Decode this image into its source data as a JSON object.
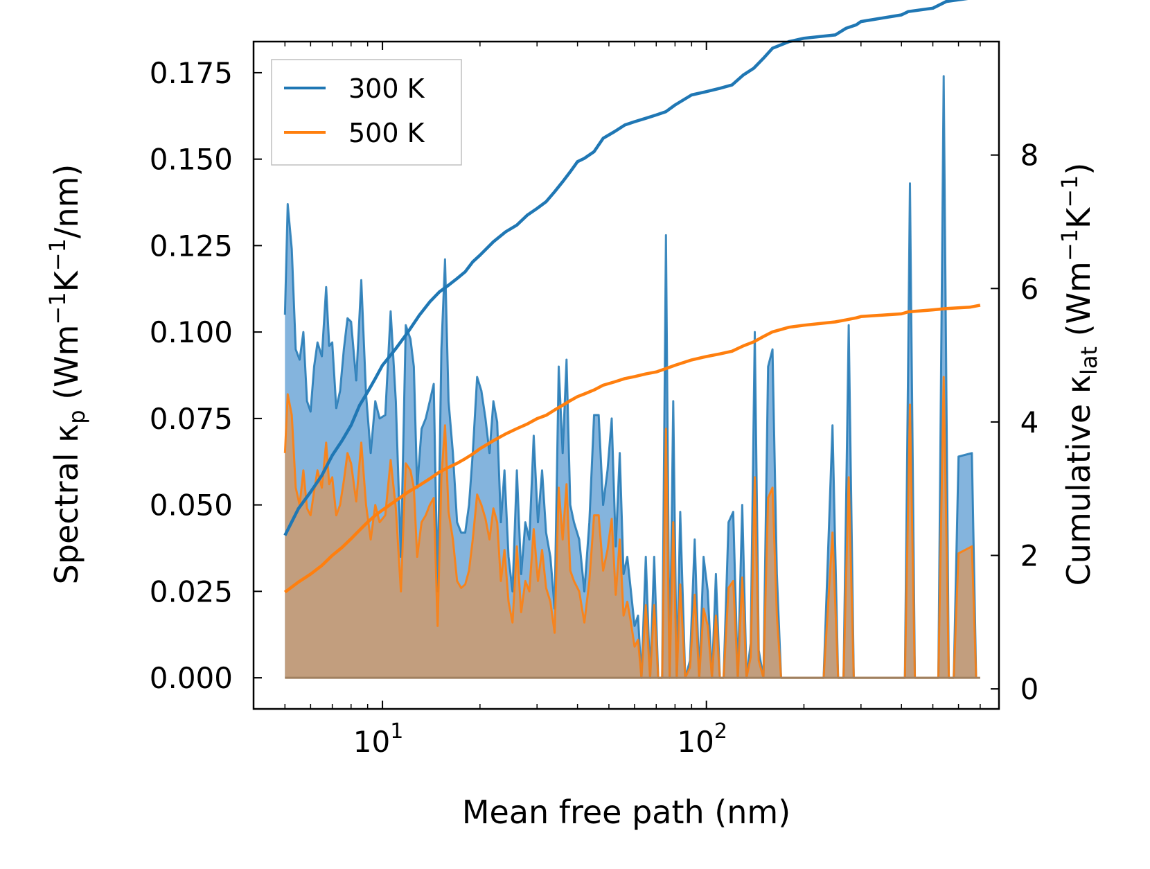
{
  "chart_data": {
    "type": "line",
    "title": "",
    "xlabel": "Mean free path (nm)",
    "ylabel_left": {
      "main": "Spectral κ",
      "sub": "p",
      "units_open": " (Wm",
      "sup1": "−1",
      "k": "K",
      "sup2": "−1",
      "tail": "/nm)"
    },
    "ylabel_right": {
      "main": "Cumulative κ",
      "sub": "lat",
      "units_open": " (Wm",
      "sup1": "−1",
      "k": "K",
      "sup2": "−1",
      "tail": ")"
    },
    "xscale": "log",
    "xlim": [
      4.0,
      800
    ],
    "ylim_left": [
      -0.009,
      0.184
    ],
    "ylim_right": [
      -0.3,
      9.7
    ],
    "xticks": [
      {
        "value": 10,
        "base": "10",
        "exp": "1"
      },
      {
        "value": 100,
        "base": "10",
        "exp": "2"
      }
    ],
    "yticks_left": [
      "0.000",
      "0.025",
      "0.050",
      "0.075",
      "0.100",
      "0.125",
      "0.150",
      "0.175"
    ],
    "yticks_left_values": [
      0,
      0.025,
      0.05,
      0.075,
      0.1,
      0.125,
      0.15,
      0.175
    ],
    "yticks_right": [
      "0",
      "2",
      "4",
      "6",
      "8"
    ],
    "yticks_right_values": [
      0,
      2,
      4,
      6,
      8
    ],
    "legend": {
      "position": "top-left",
      "entries": [
        {
          "label": "300 K",
          "color": "#1f77b4"
        },
        {
          "label": "500 K",
          "color": "#ff7f0e"
        }
      ]
    },
    "colors": {
      "s300": "#1f77b4",
      "s500": "#ff7f0e",
      "fill300": "#5b9bd1",
      "fill500": "#c59d78"
    },
    "spectral": {
      "axis": "left",
      "mfp": [
        5.0,
        5.1,
        5.25,
        5.4,
        5.55,
        5.7,
        5.85,
        6.0,
        6.15,
        6.3,
        6.5,
        6.7,
        6.85,
        7.0,
        7.2,
        7.4,
        7.6,
        7.8,
        8.0,
        8.3,
        8.6,
        8.9,
        9.2,
        9.5,
        9.8,
        10.2,
        10.6,
        11.0,
        11.4,
        11.8,
        12.2,
        12.5,
        12.8,
        13.2,
        13.6,
        14.0,
        14.4,
        14.8,
        15.2,
        15.6,
        16.0,
        16.5,
        17.0,
        17.5,
        18.0,
        18.5,
        19.0,
        19.6,
        20.2,
        20.8,
        21.4,
        22.0,
        22.6,
        23.2,
        23.8,
        24.5,
        25.2,
        26.0,
        26.8,
        27.6,
        28.4,
        29.3,
        30.2,
        31.1,
        32.0,
        33.0,
        34.0,
        35.0,
        36.0,
        37.0,
        38.0,
        39.0,
        40.5,
        42.0,
        43.5,
        45.0,
        46.5,
        48.0,
        49.5,
        51.0,
        52.5,
        54.0,
        55.5,
        57.0,
        58.5,
        60.0,
        61.5,
        63.0,
        65.0,
        67.0,
        69.0,
        71.0,
        73.0,
        75.0,
        77.0,
        79.0,
        81.0,
        83.0,
        86.0,
        89.0,
        92.0,
        95.0,
        98.0,
        101.0,
        104.0,
        107.0,
        110.0,
        113.0,
        117.0,
        121.0,
        125.0,
        129.0,
        133.0,
        137.0,
        141.0,
        145.0,
        150.0,
        155.0,
        160.0,
        165.0,
        170.0,
        175.0,
        180.0,
        186.0,
        192.0,
        230.0,
        245.0,
        255.0,
        265.0,
        275.0,
        285.0,
        295.0,
        390.0,
        410.0,
        425.0,
        440.0,
        520.0,
        540.0,
        560.0,
        580.0,
        600.0,
        660.0,
        680.0,
        700.0
      ],
      "300K": [
        0.105,
        0.137,
        0.124,
        0.095,
        0.092,
        0.1,
        0.08,
        0.077,
        0.09,
        0.097,
        0.093,
        0.113,
        0.096,
        0.097,
        0.078,
        0.083,
        0.095,
        0.104,
        0.103,
        0.086,
        0.115,
        0.082,
        0.065,
        0.08,
        0.075,
        0.076,
        0.106,
        0.08,
        0.035,
        0.102,
        0.098,
        0.09,
        0.055,
        0.072,
        0.075,
        0.08,
        0.085,
        0.025,
        0.095,
        0.121,
        0.08,
        0.065,
        0.045,
        0.042,
        0.042,
        0.05,
        0.065,
        0.087,
        0.083,
        0.075,
        0.065,
        0.08,
        0.074,
        0.045,
        0.06,
        0.035,
        0.025,
        0.06,
        0.03,
        0.045,
        0.04,
        0.07,
        0.045,
        0.06,
        0.042,
        0.035,
        0.02,
        0.09,
        0.065,
        0.092,
        0.05,
        0.045,
        0.04,
        0.025,
        0.045,
        0.076,
        0.076,
        0.05,
        0.06,
        0.075,
        0.038,
        0.065,
        0.03,
        0.035,
        0.025,
        0.015,
        0.018,
        0.0,
        0.035,
        0.0,
        0.035,
        0.0,
        0.0,
        0.128,
        0.0,
        0.08,
        0.0,
        0.048,
        0.0,
        0.005,
        0.04,
        0.0,
        0.035,
        0.025,
        0.0,
        0.03,
        0.0,
        0.0,
        0.045,
        0.048,
        0.0,
        0.05,
        0.0,
        0.01,
        0.1,
        0.008,
        0.0,
        0.09,
        0.095,
        0.03,
        0.0,
        0.0,
        0.0,
        0.0,
        0.0,
        0.0,
        0.073,
        0.0,
        0.0,
        0.102,
        0.0,
        0.0,
        0.0,
        0.0,
        0.143,
        0.0,
        0.0,
        0.174,
        0.0,
        0.0,
        0.064,
        0.065,
        0.0
      ],
      "500K": [
        0.065,
        0.082,
        0.076,
        0.055,
        0.05,
        0.06,
        0.049,
        0.047,
        0.054,
        0.06,
        0.055,
        0.068,
        0.056,
        0.058,
        0.047,
        0.05,
        0.057,
        0.065,
        0.062,
        0.051,
        0.068,
        0.05,
        0.04,
        0.05,
        0.045,
        0.047,
        0.063,
        0.049,
        0.025,
        0.062,
        0.06,
        0.055,
        0.035,
        0.045,
        0.047,
        0.05,
        0.052,
        0.015,
        0.058,
        0.073,
        0.048,
        0.04,
        0.028,
        0.026,
        0.027,
        0.031,
        0.04,
        0.053,
        0.05,
        0.046,
        0.04,
        0.049,
        0.045,
        0.028,
        0.037,
        0.022,
        0.016,
        0.038,
        0.019,
        0.028,
        0.025,
        0.043,
        0.028,
        0.037,
        0.026,
        0.022,
        0.013,
        0.055,
        0.04,
        0.056,
        0.031,
        0.028,
        0.025,
        0.016,
        0.028,
        0.047,
        0.047,
        0.031,
        0.037,
        0.046,
        0.024,
        0.04,
        0.018,
        0.022,
        0.016,
        0.009,
        0.011,
        0.0,
        0.021,
        0.0,
        0.021,
        0.0,
        0.0,
        0.072,
        0.0,
        0.045,
        0.0,
        0.027,
        0.0,
        0.003,
        0.024,
        0.0,
        0.02,
        0.015,
        0.0,
        0.018,
        0.0,
        0.0,
        0.026,
        0.028,
        0.0,
        0.029,
        0.0,
        0.006,
        0.058,
        0.005,
        0.0,
        0.052,
        0.055,
        0.018,
        0.0,
        0.0,
        0.0,
        0.0,
        0.0,
        0.0,
        0.042,
        0.0,
        0.0,
        0.058,
        0.0,
        0.0,
        0.0,
        0.0,
        0.079,
        0.0,
        0.0,
        0.087,
        0.0,
        0.0,
        0.036,
        0.038,
        0.0
      ]
    },
    "cumulative": {
      "axis": "right",
      "series": [
        {
          "name": "300 K",
          "x": [
            5.0,
            5.5,
            6.0,
            6.5,
            7.0,
            7.5,
            8.0,
            8.5,
            9.0,
            9.5,
            10.0,
            11.0,
            12.0,
            13.0,
            14.0,
            15.0,
            16.0,
            17.0,
            18.0,
            19.0,
            20.0,
            22.0,
            24.0,
            26.0,
            28.0,
            30.0,
            32.0,
            34.0,
            36.0,
            38.0,
            40.0,
            42.0,
            45.0,
            48.0,
            52.0,
            56.0,
            60.0,
            65.0,
            70.0,
            75.0,
            80.0,
            90.0,
            100.0,
            110.0,
            120.0,
            130.0,
            140.0,
            150.0,
            160.0,
            180.0,
            200.0,
            250.0,
            270.0,
            290.0,
            300.0,
            400.0,
            420.0,
            500.0,
            550.0,
            650.0,
            700.0
          ],
          "y": [
            2.3,
            2.7,
            2.95,
            3.2,
            3.5,
            3.72,
            3.95,
            4.25,
            4.45,
            4.65,
            4.85,
            5.1,
            5.35,
            5.6,
            5.8,
            5.95,
            6.05,
            6.15,
            6.25,
            6.4,
            6.5,
            6.7,
            6.85,
            6.95,
            7.1,
            7.2,
            7.3,
            7.45,
            7.6,
            7.75,
            7.9,
            7.95,
            8.05,
            8.25,
            8.35,
            8.45,
            8.5,
            8.55,
            8.6,
            8.65,
            8.75,
            8.9,
            8.95,
            9.0,
            9.05,
            9.2,
            9.3,
            9.45,
            9.6,
            9.7,
            9.75,
            9.8,
            9.9,
            9.95,
            10.0,
            10.1,
            10.15,
            10.2,
            10.3,
            10.35,
            10.4
          ]
        },
        {
          "name": "500 K",
          "x": [
            5.0,
            5.5,
            6.0,
            6.5,
            7.0,
            7.5,
            8.0,
            8.5,
            9.0,
            9.5,
            10.0,
            11.0,
            12.0,
            13.0,
            14.0,
            15.0,
            16.0,
            17.0,
            18.0,
            19.0,
            20.0,
            22.0,
            24.0,
            26.0,
            28.0,
            30.0,
            32.0,
            34.0,
            36.0,
            38.0,
            40.0,
            42.0,
            45.0,
            48.0,
            52.0,
            56.0,
            60.0,
            65.0,
            70.0,
            75.0,
            80.0,
            90.0,
            100.0,
            110.0,
            120.0,
            130.0,
            140.0,
            150.0,
            160.0,
            180.0,
            200.0,
            250.0,
            270.0,
            290.0,
            300.0,
            400.0,
            420.0,
            500.0,
            550.0,
            650.0,
            700.0
          ],
          "y": [
            1.45,
            1.6,
            1.72,
            1.85,
            2.0,
            2.12,
            2.25,
            2.38,
            2.5,
            2.6,
            2.68,
            2.82,
            2.95,
            3.05,
            3.15,
            3.25,
            3.32,
            3.38,
            3.45,
            3.52,
            3.6,
            3.72,
            3.82,
            3.9,
            3.97,
            4.05,
            4.1,
            4.18,
            4.25,
            4.32,
            4.38,
            4.42,
            4.48,
            4.55,
            4.6,
            4.65,
            4.68,
            4.72,
            4.75,
            4.8,
            4.85,
            4.93,
            4.98,
            5.02,
            5.06,
            5.14,
            5.2,
            5.28,
            5.35,
            5.42,
            5.45,
            5.5,
            5.53,
            5.56,
            5.58,
            5.62,
            5.65,
            5.68,
            5.7,
            5.72,
            5.75
          ]
        }
      ]
    }
  }
}
